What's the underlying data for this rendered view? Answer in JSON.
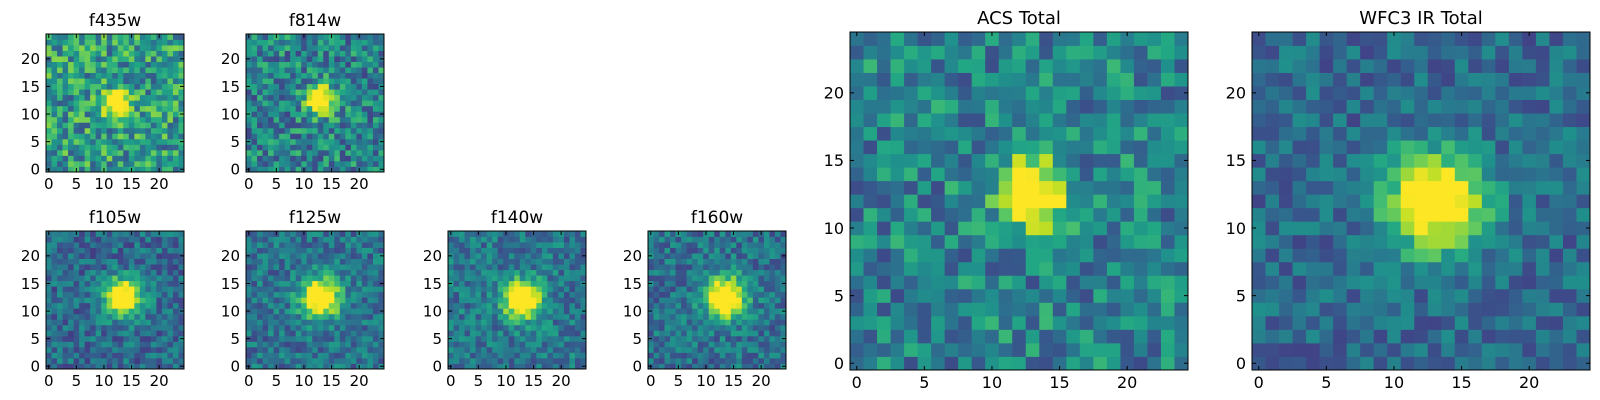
{
  "chart_data": [
    {
      "type": "heatmap",
      "title": "f435w",
      "grid_size": 25,
      "colormap": "viridis",
      "xlim": [
        0,
        24
      ],
      "ylim": [
        0,
        24
      ],
      "xticks": [
        "0",
        "5",
        "10",
        "15",
        "20"
      ],
      "yticks": [
        "0",
        "5",
        "10",
        "15",
        "20"
      ],
      "peak": [
        12.5,
        12.0
      ],
      "peak_width": 1.6,
      "noise": 0.55,
      "base": 0.55,
      "seed": 11
    },
    {
      "type": "heatmap",
      "title": "f814w",
      "grid_size": 25,
      "colormap": "viridis",
      "xlim": [
        0,
        24
      ],
      "ylim": [
        0,
        24
      ],
      "xticks": [
        "0",
        "5",
        "10",
        "15",
        "20"
      ],
      "yticks": [
        "0",
        "5",
        "10",
        "15",
        "20"
      ],
      "peak": [
        13.0,
        12.5
      ],
      "peak_width": 1.8,
      "noise": 0.5,
      "base": 0.45,
      "seed": 23
    },
    {
      "type": "heatmap",
      "title": "f105w",
      "grid_size": 25,
      "colormap": "viridis",
      "xlim": [
        0,
        24
      ],
      "ylim": [
        0,
        24
      ],
      "xticks": [
        "0",
        "5",
        "10",
        "15",
        "20"
      ],
      "yticks": [
        "0",
        "5",
        "10",
        "15",
        "20"
      ],
      "peak": [
        13.5,
        12.5
      ],
      "peak_width": 2.4,
      "noise": 0.35,
      "base": 0.35,
      "seed": 37
    },
    {
      "type": "heatmap",
      "title": "f125w",
      "grid_size": 25,
      "colormap": "viridis",
      "xlim": [
        0,
        24
      ],
      "ylim": [
        0,
        24
      ],
      "xticks": [
        "0",
        "5",
        "10",
        "15",
        "20"
      ],
      "yticks": [
        "0",
        "5",
        "10",
        "15",
        "20"
      ],
      "peak": [
        13.0,
        12.5
      ],
      "peak_width": 2.5,
      "noise": 0.35,
      "base": 0.38,
      "seed": 41
    },
    {
      "type": "heatmap",
      "title": "f140w",
      "grid_size": 25,
      "colormap": "viridis",
      "xlim": [
        0,
        24
      ],
      "ylim": [
        0,
        24
      ],
      "xticks": [
        "0",
        "5",
        "10",
        "15",
        "20"
      ],
      "yticks": [
        "0",
        "5",
        "10",
        "15",
        "20"
      ],
      "peak": [
        13.0,
        12.0
      ],
      "peak_width": 2.4,
      "noise": 0.35,
      "base": 0.4,
      "seed": 53
    },
    {
      "type": "heatmap",
      "title": "f160w",
      "grid_size": 25,
      "colormap": "viridis",
      "xlim": [
        0,
        24
      ],
      "ylim": [
        0,
        24
      ],
      "xticks": [
        "0",
        "5",
        "10",
        "15",
        "20"
      ],
      "yticks": [
        "0",
        "5",
        "10",
        "15",
        "20"
      ],
      "peak": [
        13.5,
        12.5
      ],
      "peak_width": 2.6,
      "noise": 0.35,
      "base": 0.38,
      "seed": 67
    },
    {
      "type": "heatmap",
      "title": "ACS Total",
      "grid_size": 25,
      "colormap": "viridis",
      "xlim": [
        0,
        24
      ],
      "ylim": [
        0,
        24
      ],
      "xticks": [
        "0",
        "5",
        "10",
        "15",
        "20"
      ],
      "yticks": [
        "0",
        "5",
        "10",
        "15",
        "20"
      ],
      "peak": [
        13.0,
        12.5
      ],
      "peak_width": 1.7,
      "noise": 0.45,
      "base": 0.45,
      "seed": 79
    },
    {
      "type": "heatmap",
      "title": "WFC3 IR Total",
      "grid_size": 25,
      "colormap": "viridis",
      "xlim": [
        0,
        24
      ],
      "ylim": [
        0,
        24
      ],
      "xticks": [
        "0",
        "5",
        "10",
        "15",
        "20"
      ],
      "yticks": [
        "0",
        "5",
        "10",
        "15",
        "20"
      ],
      "peak": [
        13.0,
        12.0
      ],
      "peak_width": 2.5,
      "noise": 0.3,
      "base": 0.35,
      "seed": 97
    }
  ]
}
